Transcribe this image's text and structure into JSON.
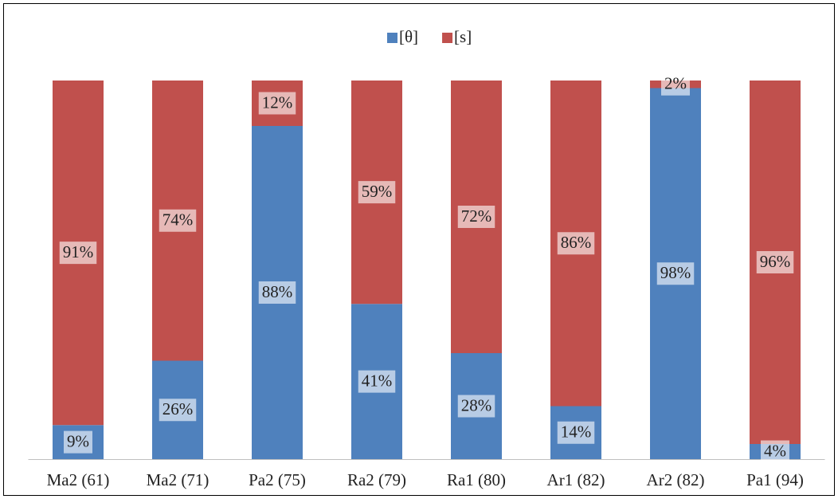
{
  "chart_data": {
    "type": "bar",
    "stacked": true,
    "categories": [
      "Ma2 (61)",
      "Ma2 (71)",
      "Pa2 (75)",
      "Ra2 (79)",
      "Ra1 (80)",
      "Ar1 (82)",
      "Ar2 (82)",
      "Pa1 (94)"
    ],
    "series": [
      {
        "name": "[θ]",
        "color": "#4f81bd",
        "values": [
          9,
          26,
          88,
          41,
          28,
          14,
          98,
          4
        ],
        "value_labels": [
          "9%",
          "26%",
          "88%",
          "41%",
          "28%",
          "14%",
          "98%",
          "4%"
        ]
      },
      {
        "name": "[s]",
        "color": "#c0504d",
        "values": [
          91,
          74,
          12,
          59,
          72,
          86,
          2,
          96
        ],
        "value_labels": [
          "91%",
          "74%",
          "12%",
          "59%",
          "72%",
          "86%",
          "2%",
          "96%"
        ]
      }
    ],
    "legend": "top"
  }
}
